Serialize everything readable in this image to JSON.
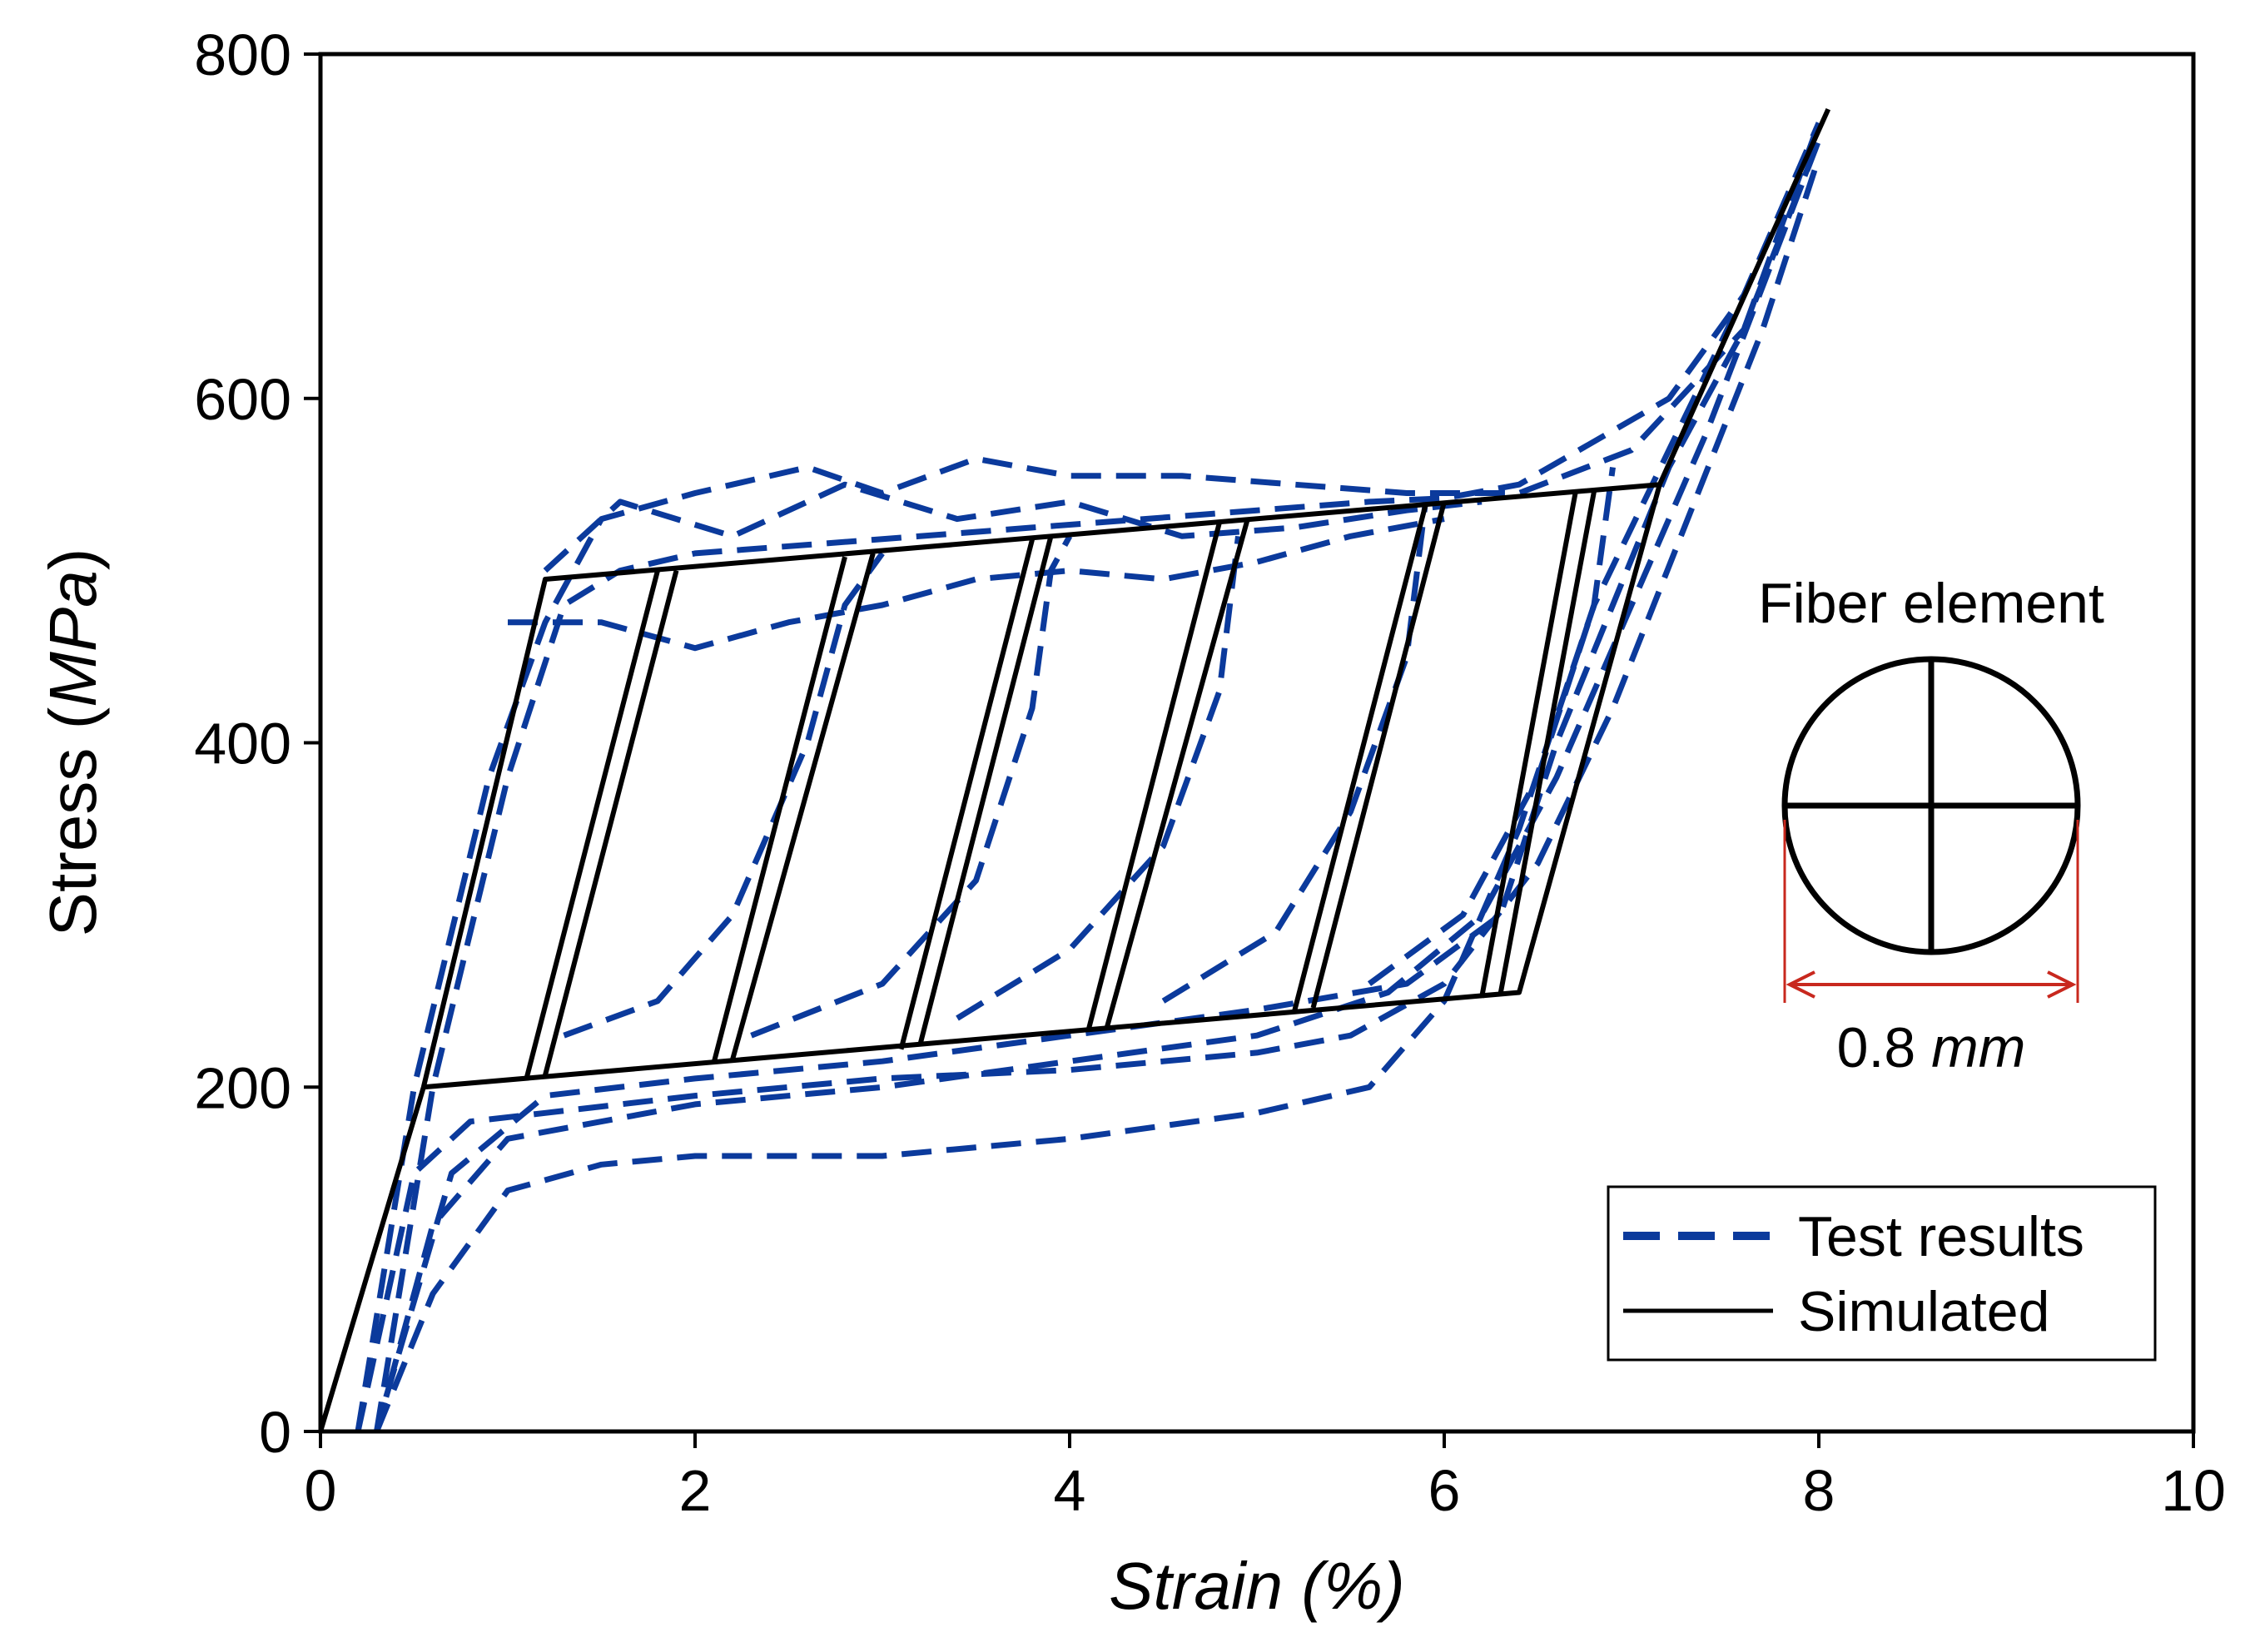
{
  "chart_data": {
    "type": "line",
    "title": "",
    "xlabel": "Strain",
    "xlabel_unit": "(%)",
    "ylabel": "Stress",
    "ylabel_unit": "MPa",
    "xlim": [
      0,
      10
    ],
    "ylim": [
      0,
      800
    ],
    "xticks": [
      0,
      2,
      4,
      6,
      8,
      10
    ],
    "yticks": [
      0,
      200,
      400,
      600,
      800
    ],
    "grid": false,
    "legend_position": "bottom-right",
    "legend": [
      {
        "label": "Test results",
        "style": "dashed",
        "color": "#0b3a9c"
      },
      {
        "label": "Simulated",
        "style": "solid",
        "color": "#000000"
      }
    ],
    "annotation": {
      "title": "Fiber element",
      "dimension_value": "0.8",
      "dimension_unit": "mm"
    },
    "series": [
      {
        "name": "Test results",
        "color": "#0b3a9c",
        "style": "dashed",
        "curves": [
          [
            [
              0.3,
              0
            ],
            [
              0.6,
              200
            ],
            [
              1.0,
              380
            ],
            [
              1.3,
              480
            ],
            [
              1.6,
              500
            ],
            [
              2.0,
              510
            ],
            [
              2.6,
              515
            ],
            [
              3.2,
              520
            ],
            [
              3.8,
              525
            ],
            [
              4.4,
              530
            ],
            [
              5.0,
              535
            ],
            [
              5.6,
              540
            ],
            [
              6.0,
              542
            ],
            [
              6.4,
              550
            ],
            [
              6.8,
              575
            ],
            [
              7.2,
              600
            ],
            [
              7.6,
              660
            ],
            [
              8.0,
              760
            ]
          ],
          [
            [
              0.2,
              0
            ],
            [
              0.5,
              200
            ],
            [
              0.9,
              380
            ],
            [
              1.2,
              470
            ],
            [
              1.5,
              530
            ],
            [
              2.0,
              545
            ],
            [
              2.6,
              560
            ],
            [
              3.0,
              545
            ],
            [
              3.5,
              565
            ],
            [
              4.0,
              555
            ],
            [
              4.6,
              555
            ],
            [
              5.2,
              550
            ],
            [
              5.8,
              545
            ],
            [
              6.4,
              545
            ],
            [
              7.0,
              570
            ],
            [
              7.6,
              640
            ],
            [
              8.0,
              750
            ]
          ],
          [
            [
              0.35,
              20
            ],
            [
              0.7,
              150
            ],
            [
              1.2,
              195
            ],
            [
              2.0,
              205
            ],
            [
              3.0,
              215
            ],
            [
              4.0,
              230
            ],
            [
              5.0,
              245
            ],
            [
              5.8,
              260
            ],
            [
              6.3,
              300
            ],
            [
              6.6,
              400
            ],
            [
              6.9,
              480
            ],
            [
              7.2,
              560
            ],
            [
              7.6,
              640
            ],
            [
              8.0,
              760
            ]
          ],
          [
            [
              0.3,
              0
            ],
            [
              0.6,
              120
            ],
            [
              1.0,
              170
            ],
            [
              2.0,
              190
            ],
            [
              3.0,
              200
            ],
            [
              4.0,
              215
            ],
            [
              5.0,
              230
            ],
            [
              5.7,
              255
            ],
            [
              6.2,
              300
            ],
            [
              6.6,
              380
            ],
            [
              7.0,
              480
            ],
            [
              7.4,
              580
            ],
            [
              8.0,
              750
            ]
          ],
          [
            [
              0.3,
              0
            ],
            [
              0.6,
              80
            ],
            [
              1.0,
              140
            ],
            [
              1.5,
              155
            ],
            [
              2.0,
              160
            ],
            [
              3.0,
              160
            ],
            [
              4.0,
              170
            ],
            [
              5.0,
              185
            ],
            [
              5.6,
              200
            ],
            [
              6.0,
              250
            ],
            [
              6.4,
              350
            ],
            [
              6.8,
              480
            ],
            [
              7.2,
              570
            ],
            [
              7.6,
              660
            ],
            [
              8.0,
              760
            ]
          ],
          [
            [
              0.2,
              0
            ],
            [
              0.5,
              150
            ],
            [
              0.8,
              180
            ],
            [
              1.2,
              185
            ],
            [
              2.0,
              195
            ],
            [
              3.0,
              205
            ],
            [
              4.0,
              210
            ],
            [
              5.0,
              220
            ],
            [
              5.5,
              230
            ],
            [
              6.0,
              260
            ],
            [
              6.5,
              330
            ],
            [
              6.9,
              420
            ],
            [
              7.3,
              530
            ],
            [
              7.7,
              640
            ],
            [
              8.0,
              740
            ]
          ],
          [
            [
              1.3,
              230
            ],
            [
              1.8,
              250
            ],
            [
              2.2,
              300
            ],
            [
              2.6,
              400
            ],
            [
              2.8,
              480
            ],
            [
              3.0,
              510
            ]
          ],
          [
            [
              2.3,
              230
            ],
            [
              3.0,
              260
            ],
            [
              3.5,
              320
            ],
            [
              3.8,
              420
            ],
            [
              3.9,
              500
            ],
            [
              4.0,
              520
            ]
          ],
          [
            [
              3.4,
              240
            ],
            [
              4.0,
              280
            ],
            [
              4.5,
              340
            ],
            [
              4.8,
              430
            ],
            [
              4.9,
              520
            ]
          ],
          [
            [
              4.5,
              250
            ],
            [
              5.1,
              290
            ],
            [
              5.5,
              360
            ],
            [
              5.8,
              450
            ],
            [
              5.9,
              540
            ]
          ],
          [
            [
              5.6,
              260
            ],
            [
              6.1,
              300
            ],
            [
              6.5,
              380
            ],
            [
              6.8,
              480
            ],
            [
              6.9,
              560
            ]
          ],
          [
            [
              1.0,
              470
            ],
            [
              1.5,
              470
            ],
            [
              2.0,
              455
            ],
            [
              2.5,
              470
            ],
            [
              3.0,
              480
            ],
            [
              3.5,
              495
            ],
            [
              4.0,
              500
            ],
            [
              4.5,
              495
            ],
            [
              5.0,
              505
            ],
            [
              5.5,
              520
            ],
            [
              6.0,
              530
            ]
          ],
          [
            [
              1.2,
              500
            ],
            [
              1.6,
              540
            ],
            [
              2.2,
              520
            ],
            [
              2.8,
              550
            ],
            [
              3.4,
              530
            ],
            [
              4.0,
              540
            ],
            [
              4.6,
              520
            ],
            [
              5.2,
              525
            ],
            [
              5.8,
              535
            ],
            [
              6.2,
              540
            ]
          ]
        ]
      },
      {
        "name": "Simulated",
        "color": "#000000",
        "style": "solid",
        "curves": [
          [
            [
              0,
              0
            ],
            [
              0.55,
              200
            ],
            [
              1.2,
              495
            ],
            [
              7.15,
              550
            ],
            [
              8.05,
              768
            ]
          ],
          [
            [
              0.55,
              200
            ],
            [
              6.4,
              255
            ],
            [
              7.15,
              550
            ]
          ],
          [
            [
              1.1,
              205
            ],
            [
              1.8,
              500
            ]
          ],
          [
            [
              1.2,
              207
            ],
            [
              1.9,
              500
            ]
          ],
          [
            [
              2.1,
              214
            ],
            [
              2.8,
              508
            ]
          ],
          [
            [
              2.2,
              216
            ],
            [
              2.95,
              510
            ]
          ],
          [
            [
              3.1,
              222
            ],
            [
              3.8,
              518
            ]
          ],
          [
            [
              3.2,
              224
            ],
            [
              3.9,
              520
            ]
          ],
          [
            [
              4.1,
              233
            ],
            [
              4.8,
              528
            ]
          ],
          [
            [
              4.2,
              235
            ],
            [
              4.95,
              530
            ]
          ],
          [
            [
              5.2,
              244
            ],
            [
              5.9,
              538
            ]
          ],
          [
            [
              5.3,
              246
            ],
            [
              6.0,
              540
            ]
          ],
          [
            [
              6.2,
              252
            ],
            [
              6.7,
              545
            ]
          ],
          [
            [
              6.3,
              254
            ],
            [
              6.8,
              546
            ]
          ]
        ]
      }
    ]
  }
}
